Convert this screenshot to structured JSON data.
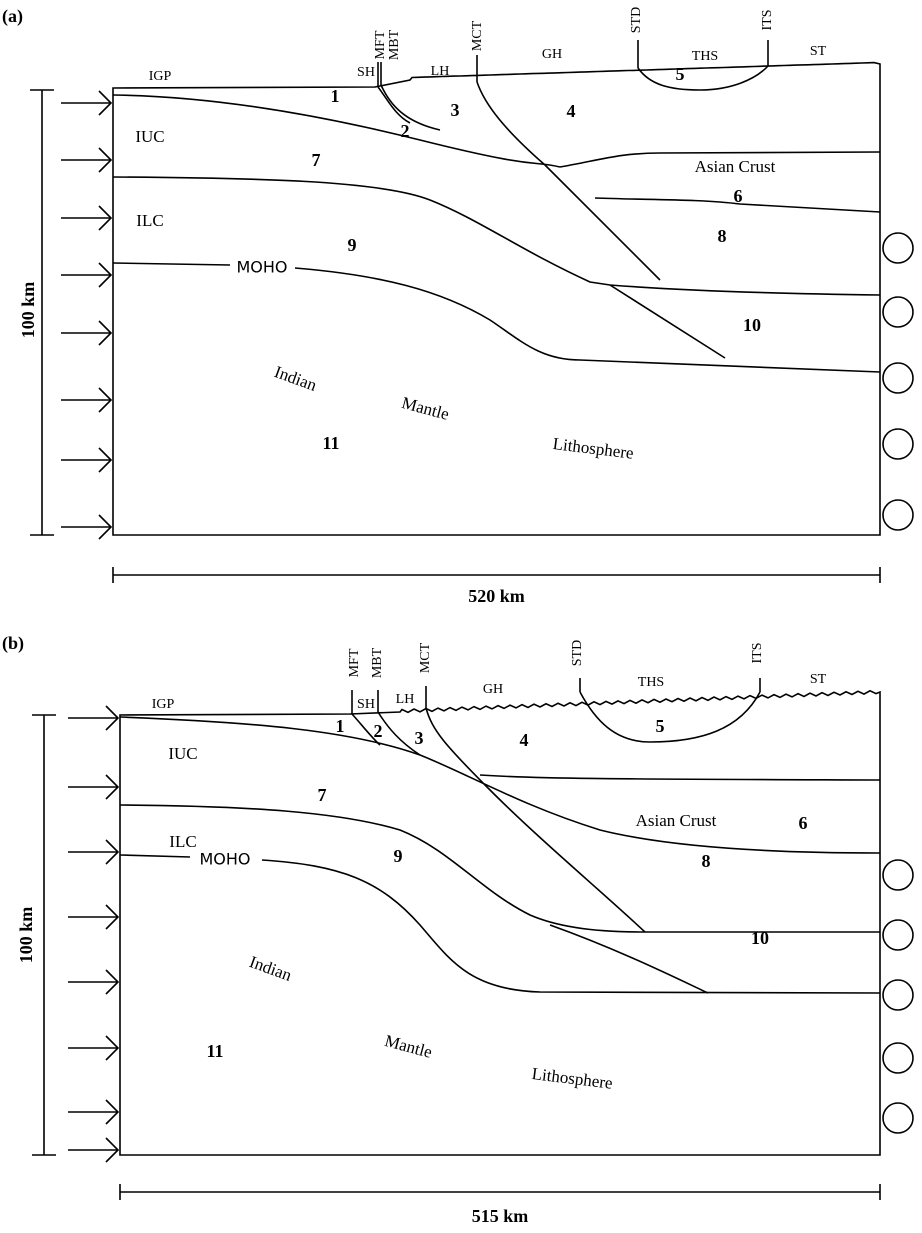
{
  "panels": [
    {
      "label": "(a)",
      "height_scale": "100 km",
      "width_scale": "520 km",
      "fault_labels": [
        "IGP",
        "MFT",
        "SH",
        "MBT",
        "LH",
        "MCT",
        "GH",
        "STD",
        "THS",
        "ITS",
        "ST"
      ],
      "unit_numbers": [
        "1",
        "2",
        "3",
        "4",
        "5",
        "6",
        "7",
        "8",
        "9",
        "10",
        "11"
      ],
      "unit_names": [
        "IUC",
        "ILC",
        "MOHO",
        "Asian Crust",
        "Indian",
        "Mantle",
        "Lithosphere"
      ]
    },
    {
      "label": "(b)",
      "height_scale": "100 km",
      "width_scale": "515 km",
      "fault_labels": [
        "IGP",
        "MFT",
        "SH",
        "MBT",
        "LH",
        "MCT",
        "GH",
        "STD",
        "THS",
        "ITS",
        "ST"
      ],
      "unit_numbers": [
        "1",
        "2",
        "3",
        "4",
        "5",
        "6",
        "7",
        "8",
        "9",
        "10",
        "11"
      ],
      "unit_names": [
        "IUC",
        "ILC",
        "MOHO",
        "Asian Crust",
        "Indian",
        "Mantle",
        "Lithosphere"
      ]
    }
  ]
}
